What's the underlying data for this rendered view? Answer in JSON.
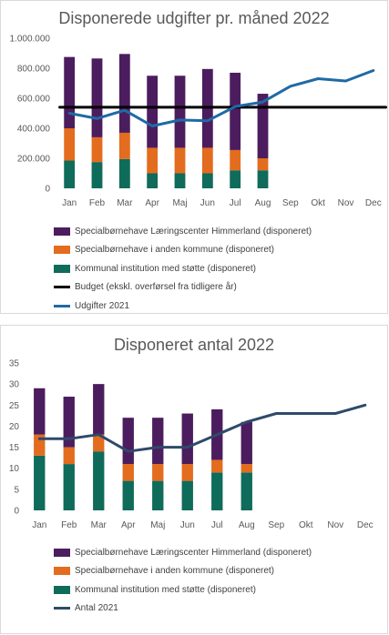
{
  "chart_data": [
    {
      "type": "bar",
      "title": "Disponerede udgifter pr. måned 2022",
      "categories": [
        "Jan",
        "Feb",
        "Mar",
        "Apr",
        "Maj",
        "Jun",
        "Jul",
        "Aug",
        "Sep",
        "Okt",
        "Nov",
        "Dec"
      ],
      "ylim": [
        0,
        1000000
      ],
      "yticks": [
        "0",
        "200.000",
        "400.000",
        "600.000",
        "800.000",
        "1.000.000"
      ],
      "ytick_values": [
        0,
        200000,
        400000,
        600000,
        800000,
        1000000
      ],
      "stacked": true,
      "grid": false,
      "legend_position": "bottom",
      "series": [
        {
          "name": "Kommunal institution med støtte (disponeret)",
          "kind": "bar",
          "color": "#0f6b5a",
          "values": [
            185000,
            175000,
            195000,
            100000,
            100000,
            100000,
            120000,
            120000,
            null,
            null,
            null,
            null
          ]
        },
        {
          "name": "Specialbørnehave i anden kommune (disponeret)",
          "kind": "bar",
          "color": "#e36c1e",
          "values": [
            215000,
            165000,
            175000,
            170000,
            170000,
            170000,
            135000,
            80000,
            null,
            null,
            null,
            null
          ]
        },
        {
          "name": "Specialbørnehave Læringscenter Himmerland (disponeret)",
          "kind": "bar",
          "color": "#4c1d5e",
          "values": [
            475000,
            525000,
            525000,
            480000,
            480000,
            525000,
            515000,
            430000,
            null,
            null,
            null,
            null
          ]
        },
        {
          "name": "Budget (ekskl. overførsel fra tidligere år)",
          "kind": "line",
          "color": "#000000",
          "values": [
            540000,
            540000,
            540000,
            540000,
            540000,
            540000,
            540000,
            540000,
            540000,
            540000,
            540000,
            540000
          ]
        },
        {
          "name": "Udgifter 2021",
          "kind": "line",
          "color": "#1f6aa5",
          "values": [
            500000,
            465000,
            520000,
            415000,
            455000,
            450000,
            545000,
            575000,
            680000,
            730000,
            715000,
            785000
          ]
        }
      ],
      "legend_order": [
        "Specialbørnehave Læringscenter Himmerland (disponeret)",
        "Specialbørnehave i anden kommune (disponeret)",
        "Kommunal institution med støtte (disponeret)",
        "Budget (ekskl. overførsel fra tidligere år)",
        "Udgifter 2021"
      ]
    },
    {
      "type": "bar",
      "title": "Disponeret antal 2022",
      "categories": [
        "Jan",
        "Feb",
        "Mar",
        "Apr",
        "Maj",
        "Jun",
        "Jul",
        "Aug",
        "Sep",
        "Okt",
        "Nov",
        "Dec"
      ],
      "ylim": [
        0,
        35
      ],
      "yticks": [
        "0",
        "5",
        "10",
        "15",
        "20",
        "25",
        "30",
        "35"
      ],
      "ytick_values": [
        0,
        5,
        10,
        15,
        20,
        25,
        30,
        35
      ],
      "stacked": true,
      "grid": false,
      "legend_position": "bottom",
      "series": [
        {
          "name": "Kommunal institution med støtte (disponeret)",
          "kind": "bar",
          "color": "#0f6b5a",
          "values": [
            13,
            11,
            14,
            7,
            7,
            7,
            9,
            9,
            null,
            null,
            null,
            null
          ]
        },
        {
          "name": "Specialbørnehave i anden kommune (disponeret)",
          "kind": "bar",
          "color": "#e36c1e",
          "values": [
            5,
            4,
            4,
            4,
            4,
            4,
            3,
            2,
            null,
            null,
            null,
            null
          ]
        },
        {
          "name": "Specialbørnehave Læringscenter Himmerland (disponeret)",
          "kind": "bar",
          "color": "#4c1d5e",
          "values": [
            11,
            12,
            12,
            11,
            11,
            12,
            12,
            10,
            null,
            null,
            null,
            null
          ]
        },
        {
          "name": "Antal 2021",
          "kind": "line",
          "color": "#2e4a6b",
          "values": [
            17,
            17,
            18,
            14,
            15,
            15,
            18,
            21,
            23,
            23,
            23,
            25
          ]
        }
      ],
      "legend_order": [
        "Specialbørnehave Læringscenter Himmerland (disponeret)",
        "Specialbørnehave i anden kommune (disponeret)",
        "Kommunal institution med støtte (disponeret)",
        "Antal 2021"
      ]
    }
  ]
}
